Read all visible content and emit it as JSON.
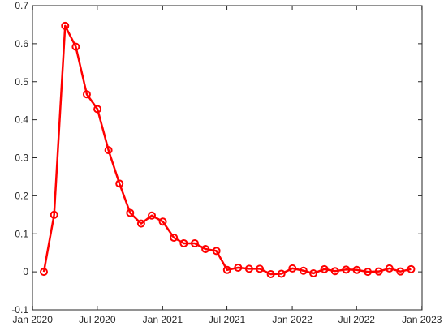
{
  "chart_data": {
    "type": "line",
    "title": "",
    "xlabel": "",
    "ylabel": "",
    "x_ticks": [
      "Jan 2020",
      "Jul 2020",
      "Jan 2021",
      "Jul 2021",
      "Jan 2022",
      "Jul 2022",
      "Jan 2023"
    ],
    "y_ticks": [
      "-0.1",
      "0",
      "0.1",
      "0.2",
      "0.3",
      "0.4",
      "0.5",
      "0.6",
      "0.7"
    ],
    "xlim": [
      "2019-12-31",
      "2023-01-01"
    ],
    "ylim": [
      -0.1,
      0.7
    ],
    "grid": false,
    "legend": "none",
    "series": [
      {
        "color": "#ff0000",
        "marker": "circle",
        "points": [
          {
            "x": "2020-02-01",
            "y": 0.0
          },
          {
            "x": "2020-03-01",
            "y": 0.15
          },
          {
            "x": "2020-04-01",
            "y": 0.647
          },
          {
            "x": "2020-05-01",
            "y": 0.592
          },
          {
            "x": "2020-06-01",
            "y": 0.467
          },
          {
            "x": "2020-07-01",
            "y": 0.428
          },
          {
            "x": "2020-08-01",
            "y": 0.32
          },
          {
            "x": "2020-09-01",
            "y": 0.232
          },
          {
            "x": "2020-10-01",
            "y": 0.155
          },
          {
            "x": "2020-11-01",
            "y": 0.127
          },
          {
            "x": "2020-12-01",
            "y": 0.148
          },
          {
            "x": "2021-01-01",
            "y": 0.132
          },
          {
            "x": "2021-02-01",
            "y": 0.09
          },
          {
            "x": "2021-03-01",
            "y": 0.075
          },
          {
            "x": "2021-04-01",
            "y": 0.075
          },
          {
            "x": "2021-05-01",
            "y": 0.06
          },
          {
            "x": "2021-06-01",
            "y": 0.055
          },
          {
            "x": "2021-07-01",
            "y": 0.005
          },
          {
            "x": "2021-08-01",
            "y": 0.011
          },
          {
            "x": "2021-09-01",
            "y": 0.008
          },
          {
            "x": "2021-10-01",
            "y": 0.008
          },
          {
            "x": "2021-11-01",
            "y": -0.006
          },
          {
            "x": "2021-12-01",
            "y": -0.005
          },
          {
            "x": "2022-01-01",
            "y": 0.009
          },
          {
            "x": "2022-02-01",
            "y": 0.003
          },
          {
            "x": "2022-03-01",
            "y": -0.004
          },
          {
            "x": "2022-04-01",
            "y": 0.007
          },
          {
            "x": "2022-05-01",
            "y": 0.002
          },
          {
            "x": "2022-06-01",
            "y": 0.006
          },
          {
            "x": "2022-07-01",
            "y": 0.005
          },
          {
            "x": "2022-08-01",
            "y": 0.0
          },
          {
            "x": "2022-09-01",
            "y": 0.001
          },
          {
            "x": "2022-10-01",
            "y": 0.009
          },
          {
            "x": "2022-11-01",
            "y": 0.001
          },
          {
            "x": "2022-12-01",
            "y": 0.007
          }
        ]
      }
    ]
  }
}
